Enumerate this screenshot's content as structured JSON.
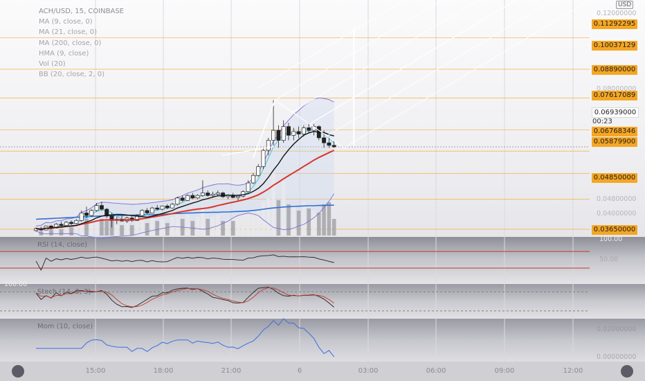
{
  "legend": {
    "title": "ACH/USD, 15, COINBASE",
    "items": [
      "MA (9, close, 0)",
      "MA (21, close, 0)",
      "MA (200, close, 0)",
      "HMA (9, close)",
      "Vol (20)",
      "BB (20, close, 2, 0)"
    ]
  },
  "currency_badge": "USD",
  "price_tags": [
    {
      "label": "0.11292295",
      "kind": "level"
    },
    {
      "label": "0.10037129",
      "kind": "level"
    },
    {
      "label": "0.08890000",
      "kind": "level"
    },
    {
      "label": "0.07617089",
      "kind": "level"
    },
    {
      "label": "0.06939000",
      "kind": "current"
    },
    {
      "label": "0.06768346",
      "kind": "level"
    },
    {
      "label": "0.05879900",
      "kind": "level"
    },
    {
      "label": "0.04850000",
      "kind": "level"
    },
    {
      "label": "0.03650000",
      "kind": "level"
    }
  ],
  "countdown": "00:23",
  "faint_axis_labels": [
    "0.12000000",
    "0.08000000",
    "0.04800000",
    "0.04000000"
  ],
  "rsi": {
    "label": "RSI (14, close)",
    "top_value": "100.00",
    "mid_value": "50.00"
  },
  "stoch": {
    "label": "Stoch (14, 3, 3)",
    "top_value": "100.00"
  },
  "mom": {
    "label": "Mom (10, close)",
    "axis_value": "0.02000000",
    "low_value": "0.00000000"
  },
  "time_axis": [
    "15:00",
    "18:00",
    "21:00",
    "6",
    "03:00",
    "06:00",
    "09:00",
    "12:00"
  ],
  "colors": {
    "level_line": "#f5a623",
    "ma9": "#111111",
    "ma21": "#d9342b",
    "ma200": "#2f6fd1",
    "hma": "#41c8d8",
    "bb": "#7b6fd6",
    "volume": "#a7a7ad",
    "rsi_band": "#c0392b",
    "mom_line": "#3a6fe0"
  },
  "chart_data": {
    "type": "candlestick",
    "symbol": "ACH/USD",
    "interval": "15",
    "exchange": "COINBASE",
    "ylim": [
      0.034,
      0.128
    ],
    "price_levels": [
      0.11292295,
      0.10037129,
      0.0889,
      0.07617089,
      0.06768346,
      0.058799,
      0.0485,
      0.0365
    ],
    "current_price": 0.06939,
    "candles": [
      [
        0.036,
        0.0372,
        0.0355,
        0.0368
      ],
      [
        0.0368,
        0.0375,
        0.0358,
        0.0362
      ],
      [
        0.0362,
        0.038,
        0.036,
        0.0378
      ],
      [
        0.0378,
        0.0383,
        0.0365,
        0.037
      ],
      [
        0.037,
        0.039,
        0.0368,
        0.0385
      ],
      [
        0.0385,
        0.0395,
        0.0375,
        0.038
      ],
      [
        0.038,
        0.0398,
        0.0378,
        0.0393
      ],
      [
        0.0393,
        0.04,
        0.0382,
        0.0388
      ],
      [
        0.0388,
        0.0405,
        0.0385,
        0.04
      ],
      [
        0.04,
        0.044,
        0.0395,
        0.043
      ],
      [
        0.043,
        0.0455,
        0.041,
        0.042
      ],
      [
        0.042,
        0.0445,
        0.0415,
        0.044
      ],
      [
        0.044,
        0.047,
        0.0435,
        0.046
      ],
      [
        0.046,
        0.0475,
        0.044,
        0.0445
      ],
      [
        0.0445,
        0.045,
        0.041,
        0.0418
      ],
      [
        0.0418,
        0.043,
        0.0372,
        0.04
      ],
      [
        0.04,
        0.0415,
        0.0385,
        0.0405
      ],
      [
        0.0405,
        0.042,
        0.0395,
        0.0398
      ],
      [
        0.0398,
        0.0415,
        0.039,
        0.041
      ],
      [
        0.041,
        0.042,
        0.0395,
        0.04
      ],
      [
        0.04,
        0.0425,
        0.0398,
        0.042
      ],
      [
        0.042,
        0.0445,
        0.0415,
        0.044
      ],
      [
        0.044,
        0.045,
        0.0425,
        0.043
      ],
      [
        0.043,
        0.0455,
        0.0428,
        0.045
      ],
      [
        0.045,
        0.0462,
        0.044,
        0.0445
      ],
      [
        0.0445,
        0.046,
        0.044,
        0.0458
      ],
      [
        0.0458,
        0.0465,
        0.0445,
        0.045
      ],
      [
        0.045,
        0.047,
        0.0448,
        0.0465
      ],
      [
        0.0465,
        0.0495,
        0.046,
        0.049
      ],
      [
        0.049,
        0.05,
        0.0475,
        0.048
      ],
      [
        0.048,
        0.0505,
        0.0478,
        0.05
      ],
      [
        0.05,
        0.051,
        0.0485,
        0.049
      ],
      [
        0.049,
        0.0505,
        0.0485,
        0.05
      ],
      [
        0.05,
        0.056,
        0.0495,
        0.051
      ],
      [
        0.051,
        0.052,
        0.0495,
        0.05
      ],
      [
        0.05,
        0.0515,
        0.049,
        0.0505
      ],
      [
        0.0505,
        0.052,
        0.0498,
        0.051
      ],
      [
        0.051,
        0.0515,
        0.049,
        0.0495
      ],
      [
        0.0495,
        0.0505,
        0.0485,
        0.05
      ],
      [
        0.05,
        0.051,
        0.0488,
        0.0492
      ],
      [
        0.0492,
        0.05,
        0.048,
        0.0497
      ],
      [
        0.0497,
        0.052,
        0.0492,
        0.0515
      ],
      [
        0.0515,
        0.056,
        0.051,
        0.055
      ],
      [
        0.055,
        0.059,
        0.0545,
        0.058
      ],
      [
        0.058,
        0.0625,
        0.0575,
        0.0615
      ],
      [
        0.0615,
        0.069,
        0.0605,
        0.068
      ],
      [
        0.068,
        0.073,
        0.066,
        0.072
      ],
      [
        0.072,
        0.088,
        0.07,
        0.076
      ],
      [
        0.076,
        0.078,
        0.069,
        0.072
      ],
      [
        0.072,
        0.08,
        0.071,
        0.0775
      ],
      [
        0.0775,
        0.079,
        0.072,
        0.074
      ],
      [
        0.074,
        0.077,
        0.072,
        0.0755
      ],
      [
        0.0755,
        0.0775,
        0.073,
        0.0745
      ],
      [
        0.0745,
        0.078,
        0.0735,
        0.077
      ],
      [
        0.077,
        0.079,
        0.075,
        0.076
      ],
      [
        0.076,
        0.0785,
        0.074,
        0.0775
      ],
      [
        0.0775,
        0.078,
        0.072,
        0.073
      ],
      [
        0.073,
        0.076,
        0.069,
        0.071
      ],
      [
        0.071,
        0.0735,
        0.069,
        0.07
      ],
      [
        0.07,
        0.072,
        0.069,
        0.0694
      ]
    ],
    "volume": [
      3,
      2,
      4,
      3,
      5,
      3,
      6,
      4,
      5,
      9,
      8,
      10,
      11,
      8,
      7,
      9,
      6,
      5,
      6,
      5,
      7,
      8,
      6,
      9,
      7,
      8,
      6,
      9,
      11,
      8,
      10,
      7,
      9,
      14,
      8,
      9,
      10,
      7,
      8,
      7,
      8,
      9,
      10,
      12,
      12,
      16,
      18,
      30,
      17,
      26,
      15,
      14,
      12,
      16,
      13,
      12,
      11,
      15,
      16,
      8
    ],
    "ma200": [
      0.0405,
      0.0406,
      0.0407,
      0.0408,
      0.0409,
      0.041,
      0.0411,
      0.0412,
      0.0413,
      0.0414,
      0.0415,
      0.0416,
      0.0417,
      0.0418,
      0.0419,
      0.0419,
      0.042,
      0.042,
      0.0421,
      0.0421,
      0.0422,
      0.0422,
      0.0423,
      0.0423,
      0.0424,
      0.0425,
      0.0426,
      0.0427,
      0.0428,
      0.0429,
      0.043,
      0.043,
      0.0431,
      0.0432,
      0.0432,
      0.0433,
      0.0433,
      0.0434,
      0.0434,
      0.0435,
      0.0436,
      0.0437,
      0.0438,
      0.044,
      0.0442,
      0.0445,
      0.0448,
      0.045,
      0.0452,
      0.0454,
      0.0455,
      0.0456,
      0.0457,
      0.0458,
      0.0459,
      0.0459,
      0.046,
      0.046,
      0.0461,
      0.0461
    ],
    "pitchfork": {
      "pivot_a": [
        0.065,
        0.065
      ],
      "pivot_b": 0.088,
      "pivot_c": 0.069
    },
    "rsi": {
      "range": [
        0,
        100
      ],
      "bands": [
        70,
        30
      ]
    },
    "stoch": {
      "range": [
        0,
        100
      ],
      "bands": [
        80,
        20
      ]
    },
    "momentum": {
      "range": [
        -0.01,
        0.025
      ]
    }
  }
}
